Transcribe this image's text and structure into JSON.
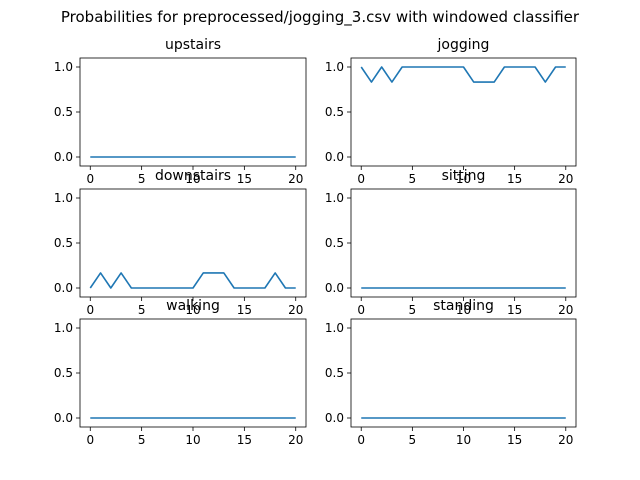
{
  "figure": {
    "title": "Probabilities for preprocessed/jogging_3.csv with windowed classifier",
    "line_color": "#1f77b4"
  },
  "chart_data": [
    {
      "type": "line",
      "title": "upstairs",
      "x": [
        0,
        1,
        2,
        3,
        4,
        5,
        6,
        7,
        8,
        9,
        10,
        11,
        12,
        13,
        14,
        15,
        16,
        17,
        18,
        19,
        20
      ],
      "y": [
        0,
        0,
        0,
        0,
        0,
        0,
        0,
        0,
        0,
        0,
        0,
        0,
        0,
        0,
        0,
        0,
        0,
        0,
        0,
        0,
        0
      ],
      "xlim": [
        -1,
        21
      ],
      "ylim": [
        -0.1,
        1.1
      ],
      "xticks": [
        0,
        5,
        10,
        15,
        20
      ],
      "yticks": [
        0.0,
        0.5,
        1.0
      ],
      "xtick_labels": [
        "0",
        "5",
        "10",
        "15",
        "20"
      ],
      "ytick_labels": [
        "0.0",
        "0.5",
        "1.0"
      ],
      "grid": false
    },
    {
      "type": "line",
      "title": "jogging",
      "x": [
        0,
        1,
        2,
        3,
        4,
        5,
        6,
        7,
        8,
        9,
        10,
        11,
        12,
        13,
        14,
        15,
        16,
        17,
        18,
        19,
        20
      ],
      "y": [
        1,
        0.833,
        1,
        0.833,
        1,
        1,
        1,
        1,
        1,
        1,
        1,
        0.833,
        0.833,
        0.833,
        1,
        1,
        1,
        1,
        0.833,
        1,
        1
      ],
      "xlim": [
        -1,
        21
      ],
      "ylim": [
        -0.1,
        1.1
      ],
      "xticks": [
        0,
        5,
        10,
        15,
        20
      ],
      "yticks": [
        0.0,
        0.5,
        1.0
      ],
      "xtick_labels": [
        "0",
        "5",
        "10",
        "15",
        "20"
      ],
      "ytick_labels": [
        "0.0",
        "0.5",
        "1.0"
      ],
      "grid": false
    },
    {
      "type": "line",
      "title": "downstairs",
      "x": [
        0,
        1,
        2,
        3,
        4,
        5,
        6,
        7,
        8,
        9,
        10,
        11,
        12,
        13,
        14,
        15,
        16,
        17,
        18,
        19,
        20
      ],
      "y": [
        0,
        0.167,
        0,
        0.167,
        0,
        0,
        0,
        0,
        0,
        0,
        0,
        0.167,
        0.167,
        0.167,
        0,
        0,
        0,
        0,
        0.167,
        0,
        0
      ],
      "xlim": [
        -1,
        21
      ],
      "ylim": [
        -0.1,
        1.1
      ],
      "xticks": [
        0,
        5,
        10,
        15,
        20
      ],
      "yticks": [
        0.0,
        0.5,
        1.0
      ],
      "xtick_labels": [
        "0",
        "5",
        "10",
        "15",
        "20"
      ],
      "ytick_labels": [
        "0.0",
        "0.5",
        "1.0"
      ],
      "grid": false
    },
    {
      "type": "line",
      "title": "sitting",
      "x": [
        0,
        1,
        2,
        3,
        4,
        5,
        6,
        7,
        8,
        9,
        10,
        11,
        12,
        13,
        14,
        15,
        16,
        17,
        18,
        19,
        20
      ],
      "y": [
        0,
        0,
        0,
        0,
        0,
        0,
        0,
        0,
        0,
        0,
        0,
        0,
        0,
        0,
        0,
        0,
        0,
        0,
        0,
        0,
        0
      ],
      "xlim": [
        -1,
        21
      ],
      "ylim": [
        -0.1,
        1.1
      ],
      "xticks": [
        0,
        5,
        10,
        15,
        20
      ],
      "yticks": [
        0.0,
        0.5,
        1.0
      ],
      "xtick_labels": [
        "0",
        "5",
        "10",
        "15",
        "20"
      ],
      "ytick_labels": [
        "0.0",
        "0.5",
        "1.0"
      ],
      "grid": false
    },
    {
      "type": "line",
      "title": "walking",
      "x": [
        0,
        1,
        2,
        3,
        4,
        5,
        6,
        7,
        8,
        9,
        10,
        11,
        12,
        13,
        14,
        15,
        16,
        17,
        18,
        19,
        20
      ],
      "y": [
        0,
        0,
        0,
        0,
        0,
        0,
        0,
        0,
        0,
        0,
        0,
        0,
        0,
        0,
        0,
        0,
        0,
        0,
        0,
        0,
        0
      ],
      "xlim": [
        -1,
        21
      ],
      "ylim": [
        -0.1,
        1.1
      ],
      "xticks": [
        0,
        5,
        10,
        15,
        20
      ],
      "yticks": [
        0.0,
        0.5,
        1.0
      ],
      "xtick_labels": [
        "0",
        "5",
        "10",
        "15",
        "20"
      ],
      "ytick_labels": [
        "0.0",
        "0.5",
        "1.0"
      ],
      "grid": false
    },
    {
      "type": "line",
      "title": "standing",
      "x": [
        0,
        1,
        2,
        3,
        4,
        5,
        6,
        7,
        8,
        9,
        10,
        11,
        12,
        13,
        14,
        15,
        16,
        17,
        18,
        19,
        20
      ],
      "y": [
        0,
        0,
        0,
        0,
        0,
        0,
        0,
        0,
        0,
        0,
        0,
        0,
        0,
        0,
        0,
        0,
        0,
        0,
        0,
        0,
        0
      ],
      "xlim": [
        -1,
        21
      ],
      "ylim": [
        -0.1,
        1.1
      ],
      "xticks": [
        0,
        5,
        10,
        15,
        20
      ],
      "yticks": [
        0.0,
        0.5,
        1.0
      ],
      "xtick_labels": [
        "0",
        "5",
        "10",
        "15",
        "20"
      ],
      "ytick_labels": [
        "0.0",
        "0.5",
        "1.0"
      ],
      "grid": false
    }
  ]
}
